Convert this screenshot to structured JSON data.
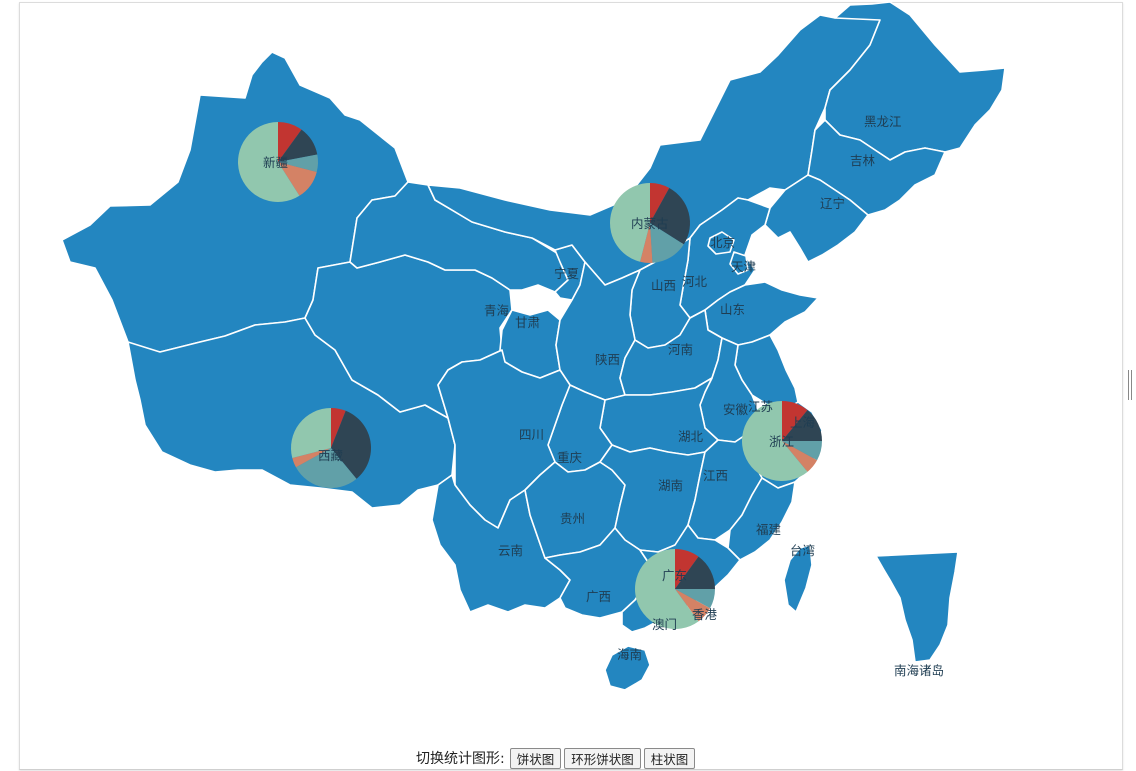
{
  "labels": {
    "heilongjiang": "黑龙江",
    "jilin": "吉林",
    "liaoning": "辽宁",
    "beijing": "北京",
    "tianjin": "天津",
    "hebei": "河北",
    "shandong": "山东",
    "shanxi": "山西",
    "neimenggu": "内蒙古",
    "ningxia": "宁夏",
    "gansu": "甘肃",
    "qinghai": "青海",
    "xinjiang": "新疆",
    "xizang": "西藏",
    "shaanxi": "陕西",
    "henan": "河南",
    "jiangsu": "江苏",
    "anhui": "安徽",
    "shanghai": "上海",
    "zhejiang": "浙江",
    "hubei": "湖北",
    "sichuan": "四川",
    "chongqing": "重庆",
    "hunan": "湖南",
    "jiangxi": "江西",
    "guizhou": "贵州",
    "yunnan": "云南",
    "guangxi": "广西",
    "guangdong": "广东",
    "fujian": "福建",
    "taiwan": "台湾",
    "hongkong": "香港",
    "macau": "澳门",
    "hainan": "海南",
    "nanhai": "南海诸岛"
  },
  "colors": {
    "province_fill": "#2386c0",
    "province_border": "#ffffff",
    "label_text": "#1f3d52",
    "pie_slices": [
      "#c23531",
      "#2f4554",
      "#61a0a8",
      "#d48265",
      "#91c7ae"
    ]
  },
  "pies": [
    {
      "region": "xinjiang",
      "values": [
        10,
        12,
        7,
        12,
        59
      ]
    },
    {
      "region": "neimenggu",
      "values": [
        8,
        26,
        15,
        5,
        46
      ]
    },
    {
      "region": "xizang",
      "values": [
        6,
        33,
        28,
        4,
        29
      ]
    },
    {
      "region": "shanghai_zhejiang",
      "values": [
        11,
        14,
        8,
        6,
        61
      ]
    },
    {
      "region": "guangdong",
      "values": [
        10,
        15,
        8,
        7,
        60
      ]
    }
  ],
  "toolbar": {
    "prefix": "切换统计图形:",
    "buttons": [
      "饼状图",
      "环形饼状图",
      "柱状图"
    ]
  }
}
